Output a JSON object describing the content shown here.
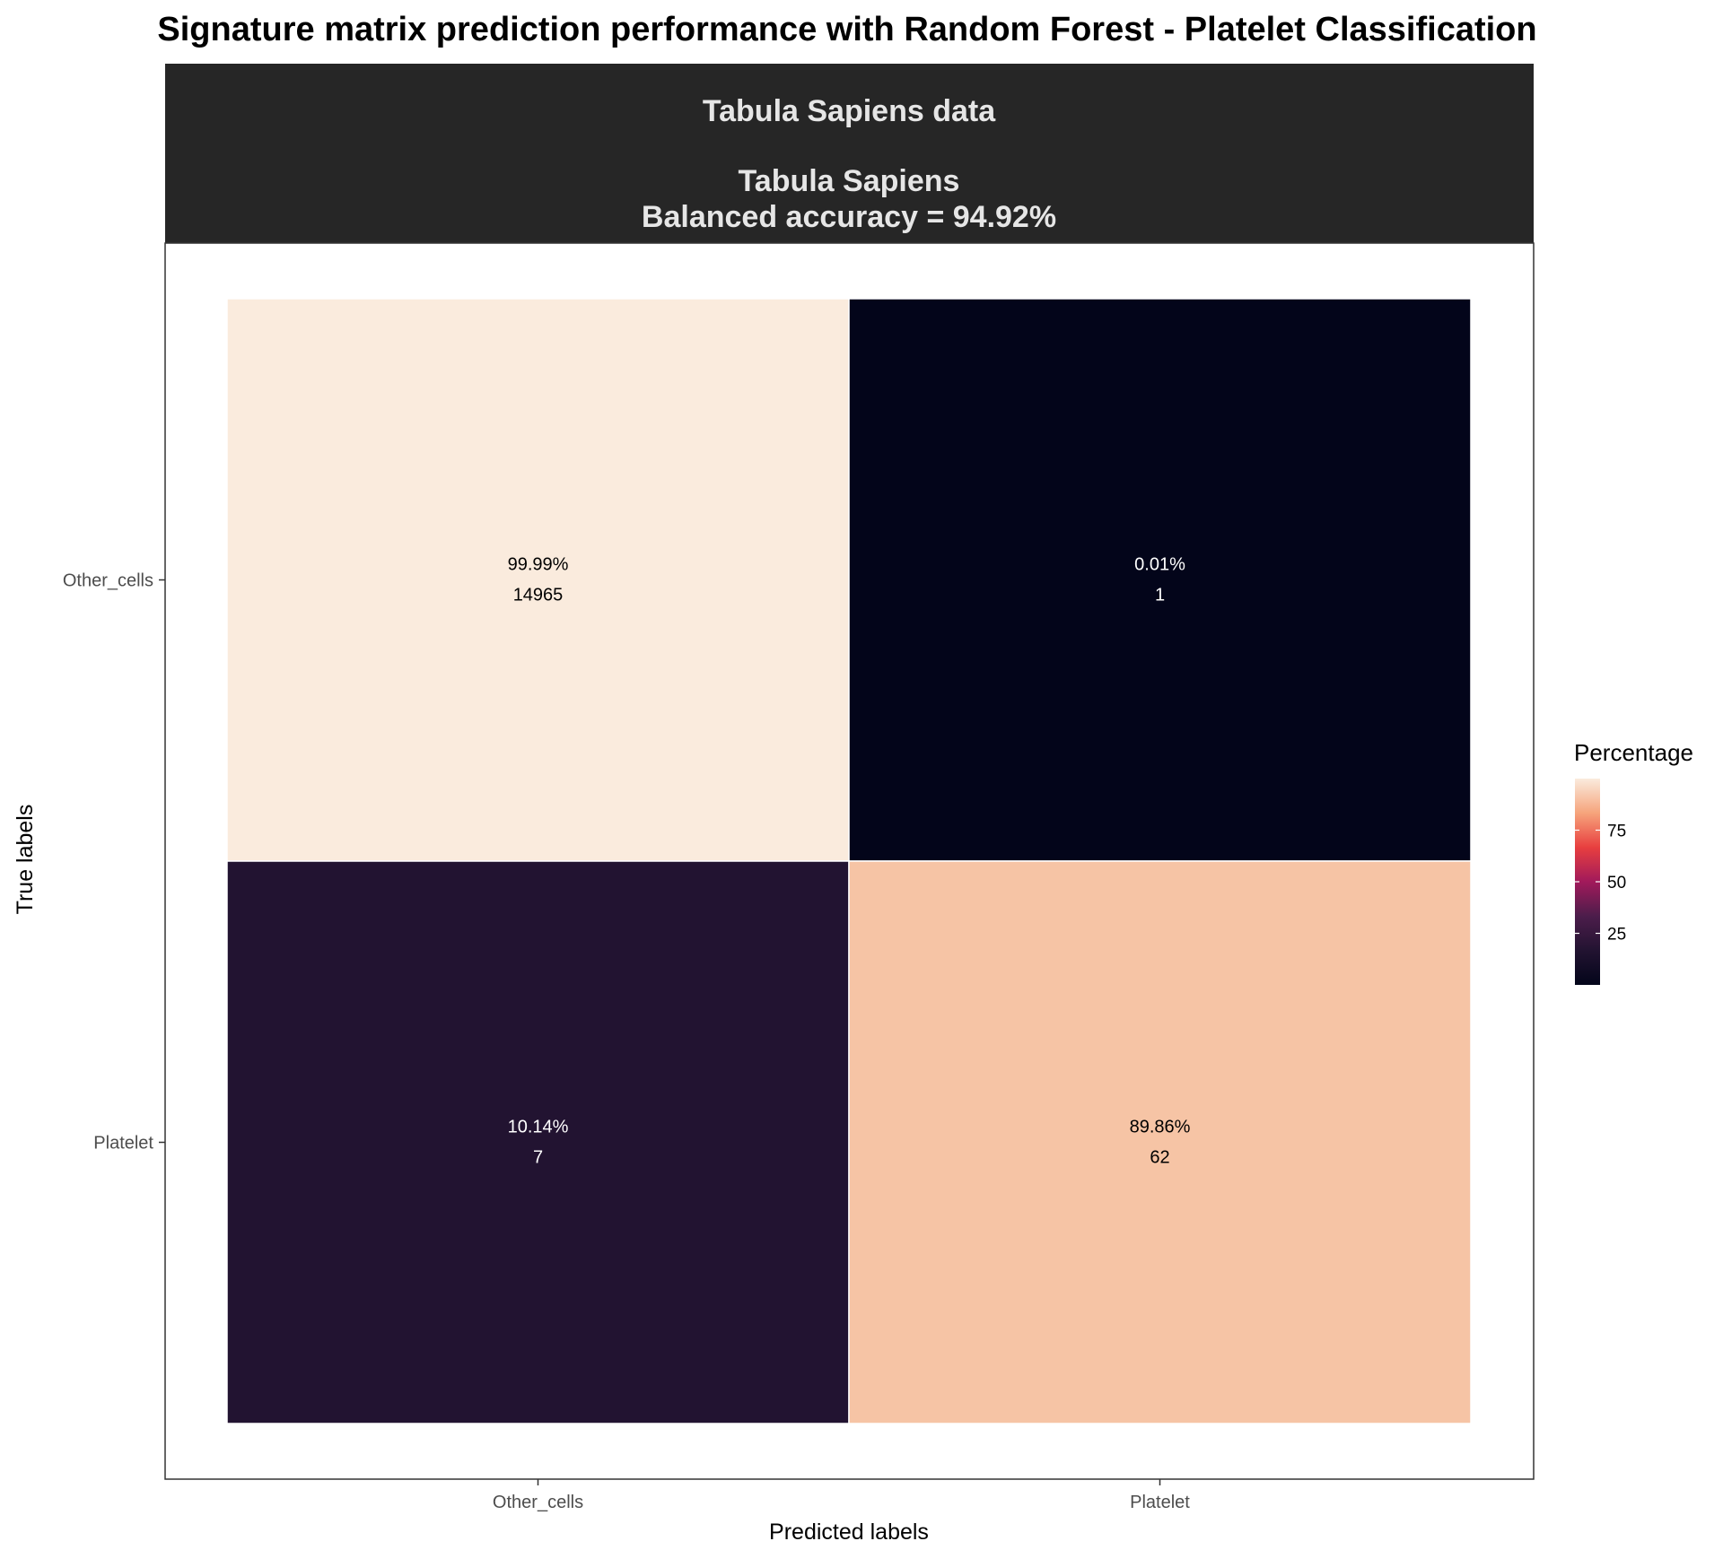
{
  "chart_data": {
    "type": "heatmap",
    "title": "Signature matrix prediction performance with Random Forest - Platelet Classification",
    "facet_strip": {
      "line1": "Tabula Sapiens data",
      "line2": "Tabula Sapiens",
      "line3": "Balanced accuracy = 94.92%"
    },
    "xlabel": "Predicted labels",
    "ylabel": "True labels",
    "x_categories": [
      "Other_cells",
      "Platelet"
    ],
    "y_categories": [
      "Other_cells",
      "Platelet"
    ],
    "cells": [
      {
        "true": "Other_cells",
        "predicted": "Other_cells",
        "percentage": 99.99,
        "percentage_label": "99.99%",
        "count": "14965",
        "fill": "#faebdd",
        "text_color": "#000000"
      },
      {
        "true": "Other_cells",
        "predicted": "Platelet",
        "percentage": 0.01,
        "percentage_label": "0.01%",
        "count": "1",
        "fill": "#03051a",
        "text_color": "#ffffff"
      },
      {
        "true": "Platelet",
        "predicted": "Other_cells",
        "percentage": 10.14,
        "percentage_label": "10.14%",
        "count": "7",
        "fill": "#221331",
        "text_color": "#ffffff"
      },
      {
        "true": "Platelet",
        "predicted": "Platelet",
        "percentage": 89.86,
        "percentage_label": "89.86%",
        "count": "62",
        "fill": "#f6c4a5",
        "text_color": "#000000"
      }
    ],
    "legend": {
      "title": "Percentage",
      "ticks": [
        "25",
        "50",
        "75"
      ],
      "tick_values": [
        25,
        50,
        75
      ],
      "range": [
        0.01,
        99.99
      ],
      "colors": [
        "#03051a",
        "#221331",
        "#4c1d4b",
        "#a11a5b",
        "#e83f3f",
        "#f6a47c",
        "#faebdd"
      ]
    },
    "strip_color": "#262626"
  }
}
